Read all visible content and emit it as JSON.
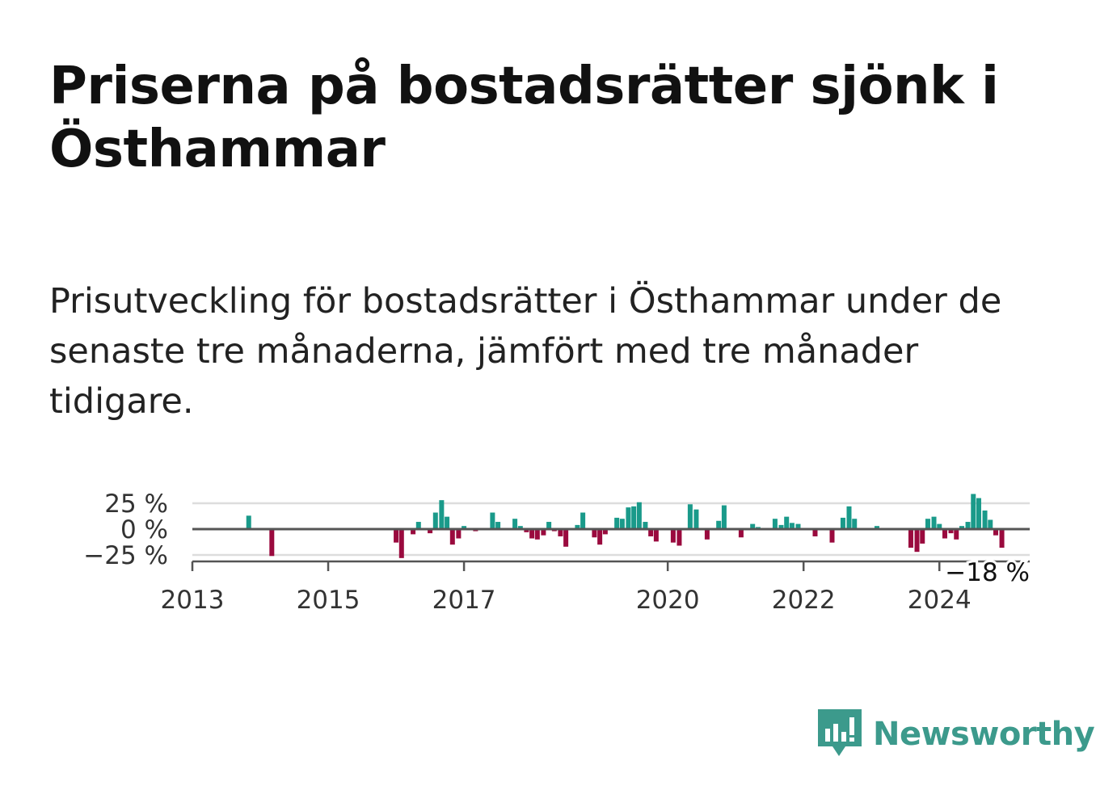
{
  "title": "Priserna på bostadsrätter sjönk i Östhammar",
  "subtitle": "Prisutveckling för bostadsrätter i Östhammar under de senaste tre månaderna, jämfört med tre månader tidigare.",
  "logo_text": "Newsworthy",
  "colors": {
    "positive": "#1a9a8a",
    "negative": "#9a0a3e",
    "grid": "#dddddd",
    "axis": "#555555"
  },
  "chart_data": {
    "type": "bar",
    "title": "Priserna på bostadsrätter sjönk i Östhammar",
    "ylabel": "",
    "xlabel": "",
    "ylim": [
      -30,
      30
    ],
    "xlim": [
      2013.0,
      2025.33
    ],
    "y_ticks": [
      {
        "value": 25,
        "label": "25 %"
      },
      {
        "value": 0,
        "label": "0 %"
      },
      {
        "value": -25,
        "label": "−25 %"
      }
    ],
    "x_ticks": [
      {
        "value": 2013,
        "label": "2013"
      },
      {
        "value": 2015,
        "label": "2015"
      },
      {
        "value": 2017,
        "label": "2017"
      },
      {
        "value": 2020,
        "label": "2020"
      },
      {
        "value": 2022,
        "label": "2022"
      },
      {
        "value": 2024,
        "label": "2024"
      }
    ],
    "last_value_label": "−18 %",
    "series": [
      {
        "name": "Prisutveckling",
        "points": [
          {
            "x": 2013.83,
            "y": 13
          },
          {
            "x": 2014.17,
            "y": -26
          },
          {
            "x": 2016.0,
            "y": -13
          },
          {
            "x": 2016.08,
            "y": -28
          },
          {
            "x": 2016.25,
            "y": -5
          },
          {
            "x": 2016.33,
            "y": 7
          },
          {
            "x": 2016.5,
            "y": -4
          },
          {
            "x": 2016.58,
            "y": 16
          },
          {
            "x": 2016.67,
            "y": 28
          },
          {
            "x": 2016.75,
            "y": 12
          },
          {
            "x": 2016.83,
            "y": -15
          },
          {
            "x": 2016.92,
            "y": -9
          },
          {
            "x": 2017.0,
            "y": 3
          },
          {
            "x": 2017.17,
            "y": -2
          },
          {
            "x": 2017.42,
            "y": 16
          },
          {
            "x": 2017.5,
            "y": 7
          },
          {
            "x": 2017.75,
            "y": 10
          },
          {
            "x": 2017.83,
            "y": 3
          },
          {
            "x": 2017.92,
            "y": -3
          },
          {
            "x": 2018.0,
            "y": -9
          },
          {
            "x": 2018.08,
            "y": -10
          },
          {
            "x": 2018.17,
            "y": -6
          },
          {
            "x": 2018.25,
            "y": 7
          },
          {
            "x": 2018.33,
            "y": -2
          },
          {
            "x": 2018.42,
            "y": -7
          },
          {
            "x": 2018.5,
            "y": -17
          },
          {
            "x": 2018.67,
            "y": 4
          },
          {
            "x": 2018.75,
            "y": 16
          },
          {
            "x": 2018.92,
            "y": -8
          },
          {
            "x": 2019.0,
            "y": -15
          },
          {
            "x": 2019.08,
            "y": -5
          },
          {
            "x": 2019.25,
            "y": 11
          },
          {
            "x": 2019.33,
            "y": 10
          },
          {
            "x": 2019.42,
            "y": 21
          },
          {
            "x": 2019.5,
            "y": 22
          },
          {
            "x": 2019.58,
            "y": 26
          },
          {
            "x": 2019.67,
            "y": 7
          },
          {
            "x": 2019.75,
            "y": -7
          },
          {
            "x": 2019.83,
            "y": -12
          },
          {
            "x": 2020.08,
            "y": -13
          },
          {
            "x": 2020.17,
            "y": -16
          },
          {
            "x": 2020.33,
            "y": 24
          },
          {
            "x": 2020.42,
            "y": 19
          },
          {
            "x": 2020.58,
            "y": -10
          },
          {
            "x": 2020.75,
            "y": 8
          },
          {
            "x": 2020.83,
            "y": 23
          },
          {
            "x": 2021.08,
            "y": -8
          },
          {
            "x": 2021.25,
            "y": 5
          },
          {
            "x": 2021.33,
            "y": 2
          },
          {
            "x": 2021.58,
            "y": 10
          },
          {
            "x": 2021.67,
            "y": 4
          },
          {
            "x": 2021.75,
            "y": 12
          },
          {
            "x": 2021.83,
            "y": 6
          },
          {
            "x": 2021.92,
            "y": 5
          },
          {
            "x": 2022.17,
            "y": -7
          },
          {
            "x": 2022.42,
            "y": -13
          },
          {
            "x": 2022.58,
            "y": 11
          },
          {
            "x": 2022.67,
            "y": 22
          },
          {
            "x": 2022.75,
            "y": 10
          },
          {
            "x": 2023.08,
            "y": 3
          },
          {
            "x": 2023.58,
            "y": -18
          },
          {
            "x": 2023.67,
            "y": -22
          },
          {
            "x": 2023.75,
            "y": -14
          },
          {
            "x": 2023.83,
            "y": 10
          },
          {
            "x": 2023.92,
            "y": 12
          },
          {
            "x": 2024.0,
            "y": 5
          },
          {
            "x": 2024.08,
            "y": -9
          },
          {
            "x": 2024.17,
            "y": -4
          },
          {
            "x": 2024.25,
            "y": -10
          },
          {
            "x": 2024.33,
            "y": 3
          },
          {
            "x": 2024.42,
            "y": 7
          },
          {
            "x": 2024.5,
            "y": 34
          },
          {
            "x": 2024.58,
            "y": 30
          },
          {
            "x": 2024.67,
            "y": 18
          },
          {
            "x": 2024.75,
            "y": 9
          },
          {
            "x": 2024.83,
            "y": -6
          },
          {
            "x": 2024.92,
            "y": -18
          }
        ]
      }
    ]
  }
}
